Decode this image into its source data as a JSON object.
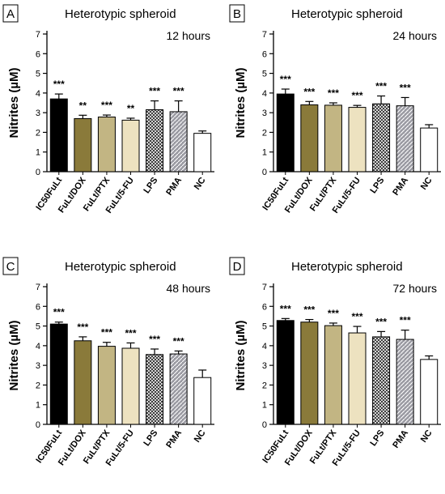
{
  "figure": {
    "panels": [
      "A",
      "B",
      "C",
      "D"
    ]
  },
  "styles": {
    "series_fill": [
      "#000000",
      "#8a7a3a",
      "#c2b583",
      "#ede2c0",
      "crosshatch",
      "diagonal-gray",
      "#ffffff"
    ],
    "bar_stroke": "#000000"
  },
  "chart_data": [
    {
      "type": "bar",
      "panel_label": "A",
      "title": "Heterotypic spheroid",
      "subtitle": "12 hours",
      "ylabel": "Nitrites (µM)",
      "xlabel": "",
      "ylim": [
        0,
        7
      ],
      "yticks": [
        0,
        1,
        2,
        3,
        4,
        5,
        6,
        7
      ],
      "categories": [
        "IC50FuLt",
        "FuLt/DOX",
        "FuLt/PTX",
        "FuLt/5-FU",
        "LPS",
        "PMA",
        "NC"
      ],
      "values": [
        3.7,
        2.7,
        2.78,
        2.62,
        3.15,
        3.05,
        1.95
      ],
      "errors": [
        0.25,
        0.17,
        0.1,
        0.1,
        0.45,
        0.55,
        0.12
      ],
      "significance": [
        "***",
        "**",
        "***",
        "**",
        "***",
        "***",
        ""
      ]
    },
    {
      "type": "bar",
      "panel_label": "B",
      "title": "Heterotypic spheroid",
      "subtitle": "24 hours",
      "ylabel": "Nitrites (µM)",
      "xlabel": "",
      "ylim": [
        0,
        7
      ],
      "yticks": [
        0,
        1,
        2,
        3,
        4,
        5,
        6,
        7
      ],
      "categories": [
        "IC50FuLt",
        "FuLt/DOX",
        "FuLt/PTX",
        "FuLt/5-FU",
        "LPS",
        "PMA",
        "NC"
      ],
      "values": [
        3.95,
        3.4,
        3.38,
        3.27,
        3.45,
        3.35,
        2.22
      ],
      "errors": [
        0.25,
        0.17,
        0.12,
        0.1,
        0.4,
        0.42,
        0.17
      ],
      "significance": [
        "***",
        "***",
        "***",
        "***",
        "***",
        "***",
        ""
      ]
    },
    {
      "type": "bar",
      "panel_label": "C",
      "title": "Heterotypic spheroid",
      "subtitle": "48 hours",
      "ylabel": "Nitrites (µM)",
      "xlabel": "",
      "ylim": [
        0,
        7
      ],
      "yticks": [
        0,
        1,
        2,
        3,
        4,
        5,
        6,
        7
      ],
      "categories": [
        "IC50FuLt",
        "FuLt/DOX",
        "FuLt/PTX",
        "FuLt/5-FU",
        "LPS",
        "PMA",
        "NC"
      ],
      "values": [
        5.1,
        4.25,
        3.97,
        3.87,
        3.55,
        3.58,
        2.38
      ],
      "errors": [
        0.1,
        0.2,
        0.2,
        0.27,
        0.28,
        0.15,
        0.38
      ],
      "significance": [
        "***",
        "***",
        "***",
        "***",
        "***",
        "***",
        ""
      ]
    },
    {
      "type": "bar",
      "panel_label": "D",
      "title": "Heterotypic spheroid",
      "subtitle": "72 hours",
      "ylabel": "Nitrites (µM)",
      "xlabel": "",
      "ylim": [
        0,
        7
      ],
      "yticks": [
        0,
        1,
        2,
        3,
        4,
        5,
        6,
        7
      ],
      "categories": [
        "IC50FuLt",
        "FuLt/DOX",
        "FuLt/PTX",
        "FuLt/5-FU",
        "LPS",
        "PMA",
        "NC"
      ],
      "values": [
        5.28,
        5.2,
        5.02,
        4.65,
        4.45,
        4.32,
        3.3
      ],
      "errors": [
        0.1,
        0.13,
        0.13,
        0.33,
        0.27,
        0.47,
        0.18
      ],
      "significance": [
        "***",
        "***",
        "***",
        "***",
        "***",
        "***",
        ""
      ]
    }
  ]
}
